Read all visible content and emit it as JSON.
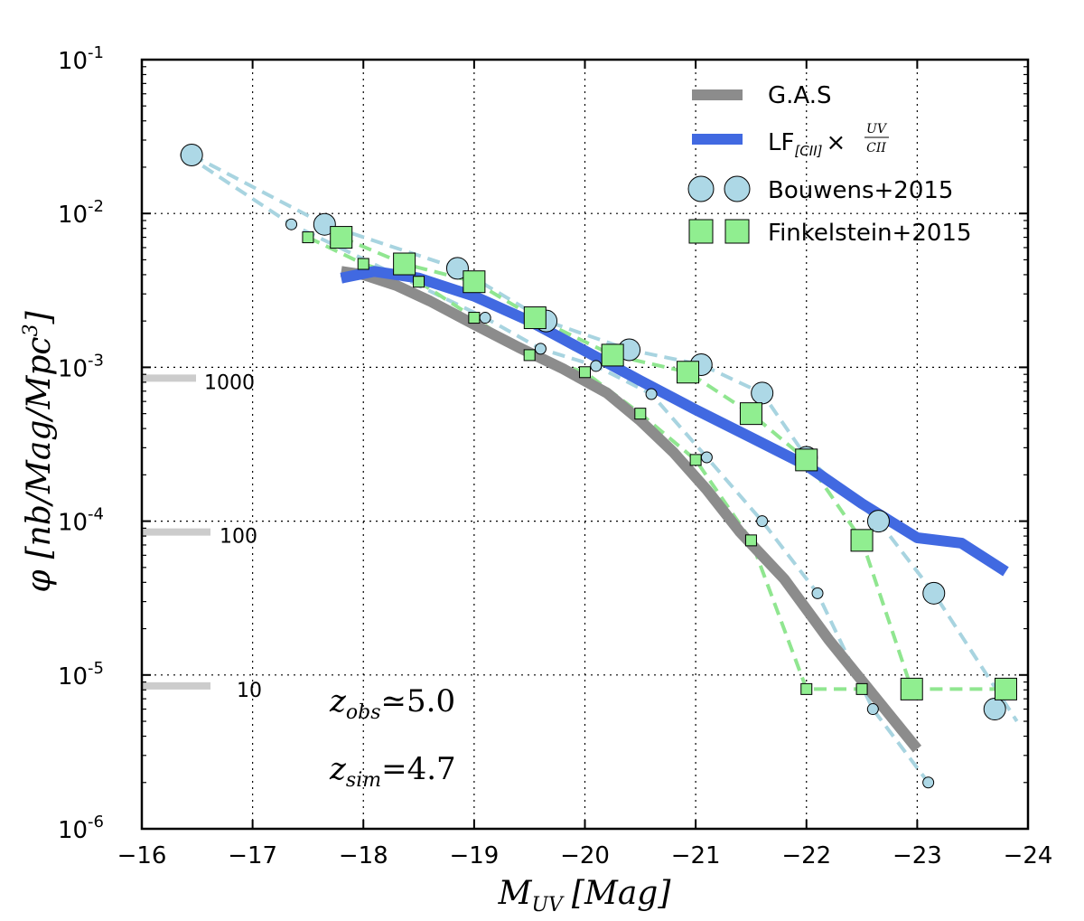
{
  "chart_data": {
    "type": "line",
    "xlabel": "M_UV [Mag]",
    "ylabel": "φ [nb/Mag/Mpc^3]",
    "x_axis_label": {
      "main": "M",
      "sub": "UV",
      "unit": "[Mag]"
    },
    "y_axis_label": {
      "phi": "φ",
      "unit": "[nb/Mag/Mpc",
      "exp": "3",
      "close": "]"
    },
    "xlim": [
      -16,
      -24
    ],
    "ylim": [
      1e-06,
      0.1
    ],
    "yscale": "log",
    "grid": true,
    "legend_position": "top-right",
    "x_ticks": [
      "−16",
      "−17",
      "−18",
      "−19",
      "−20",
      "−21",
      "−22",
      "−23",
      "−24"
    ],
    "x_tick_values": [
      -16,
      -17,
      -18,
      -19,
      -20,
      -21,
      -22,
      -23,
      -24
    ],
    "y_ticks": [
      {
        "value": 0.1,
        "base": "10",
        "exp": "-1"
      },
      {
        "value": 0.01,
        "base": "10",
        "exp": "-2"
      },
      {
        "value": 0.001,
        "base": "10",
        "exp": "-3"
      },
      {
        "value": 0.0001,
        "base": "10",
        "exp": "-4"
      },
      {
        "value": 1e-05,
        "base": "10",
        "exp": "-5"
      },
      {
        "value": 1e-06,
        "base": "10",
        "exp": "-6"
      }
    ],
    "series": [
      {
        "name": "G.A.S",
        "kind": "line",
        "color": "#8c8c8c",
        "x": [
          -17.8,
          -18.0,
          -18.3,
          -18.6,
          -19.0,
          -19.4,
          -19.8,
          -20.2,
          -20.5,
          -20.8,
          -21.1,
          -21.4,
          -21.8,
          -22.2,
          -22.6,
          -23.0
        ],
        "y": [
          0.0042,
          0.004,
          0.0034,
          0.0027,
          0.0019,
          0.00135,
          0.00098,
          0.00068,
          0.00045,
          0.00028,
          0.00016,
          8.5e-05,
          4.2e-05,
          1.7e-05,
          7.5e-06,
          3.3e-06
        ]
      },
      {
        "name": "LF_[CII] × UV/CII",
        "legend_main": "LF",
        "legend_sub": "[CII]",
        "legend_frac_num": "UV",
        "legend_frac_den": "CII",
        "kind": "line",
        "color": "#4169e1",
        "x": [
          -17.8,
          -18.1,
          -18.5,
          -19.0,
          -19.5,
          -20.0,
          -20.5,
          -21.0,
          -21.5,
          -22.0,
          -22.5,
          -23.0,
          -23.4,
          -23.8
        ],
        "y": [
          0.0038,
          0.0042,
          0.0038,
          0.0029,
          0.002,
          0.00128,
          0.00082,
          0.00053,
          0.00035,
          0.00023,
          0.00013,
          7.8e-05,
          7.2e-05,
          4.7e-05
        ]
      },
      {
        "name": "Bouwens+2015",
        "kind": "scatter-dashed",
        "color": "#add8e6",
        "line_color": "#a8d4e0",
        "large_x": [
          -16.45,
          -17.65,
          -18.85,
          -19.65,
          -20.4,
          -21.05,
          -21.6,
          -22.0,
          -22.65,
          -23.15,
          -23.7
        ],
        "large_y": [
          0.024,
          0.0085,
          0.0044,
          0.002,
          0.0013,
          0.00104,
          0.00068,
          0.00026,
          0.0001,
          3.4e-05,
          6e-06
        ],
        "small_x": [
          -16.4,
          -17.35,
          -19.1,
          -19.6,
          -20.1,
          -20.6,
          -21.1,
          -21.6,
          -22.1,
          -22.6,
          -23.1
        ],
        "small_y": [
          0.024,
          0.0085,
          0.0021,
          0.00132,
          0.00102,
          0.00067,
          0.00026,
          0.0001,
          3.4e-05,
          6e-06,
          2e-06
        ],
        "large_line_x": [
          -16.45,
          -17.65,
          -18.85,
          -19.65,
          -20.4,
          -21.05,
          -21.6,
          -22.0,
          -22.65,
          -23.15,
          -23.9
        ],
        "large_line_y": [
          0.024,
          0.0085,
          0.0044,
          0.002,
          0.0013,
          0.00104,
          0.00068,
          0.00026,
          0.0001,
          3.4e-05,
          5e-06
        ]
      },
      {
        "name": "Finkelstein+2015",
        "kind": "scatter-dashed",
        "color": "#90ee90",
        "line_color": "#90e690",
        "large_x": [
          -17.8,
          -18.37,
          -19.0,
          -19.55,
          -20.25,
          -20.93,
          -21.5,
          -22.0,
          -22.5,
          -22.95,
          -23.8
        ],
        "large_y": [
          0.007,
          0.0047,
          0.0036,
          0.0021,
          0.0012,
          0.00093,
          0.0005,
          0.00025,
          7.5e-05,
          8.1e-06,
          8.1e-06
        ],
        "small_x": [
          -17.5,
          -18.0,
          -18.5,
          -19.0,
          -19.5,
          -20.0,
          -20.5,
          -21.0,
          -21.5,
          -22.0,
          -22.5
        ],
        "small_y": [
          0.007,
          0.0047,
          0.0036,
          0.0021,
          0.0012,
          0.00093,
          0.0005,
          0.00025,
          7.5e-05,
          8.1e-06,
          8.1e-06
        ]
      }
    ],
    "size_markers": [
      {
        "label": "1000",
        "value": 0.00085
      },
      {
        "label": "100",
        "value": 8.5e-05
      },
      {
        "label": "10",
        "value": 8.5e-06
      }
    ],
    "annotations": [
      {
        "var": "z",
        "sub": "obs",
        "op": "≃",
        "val": "5.0"
      },
      {
        "var": "z",
        "sub": "sim",
        "op": "=",
        "val": "4.7"
      }
    ]
  },
  "colors": {
    "gas": "#8c8c8c",
    "lf": "#4169e1",
    "bouwens": "#add8e6",
    "finkelstein": "#90ee90",
    "size_bar": "#cccccc",
    "grid": "#000000"
  }
}
